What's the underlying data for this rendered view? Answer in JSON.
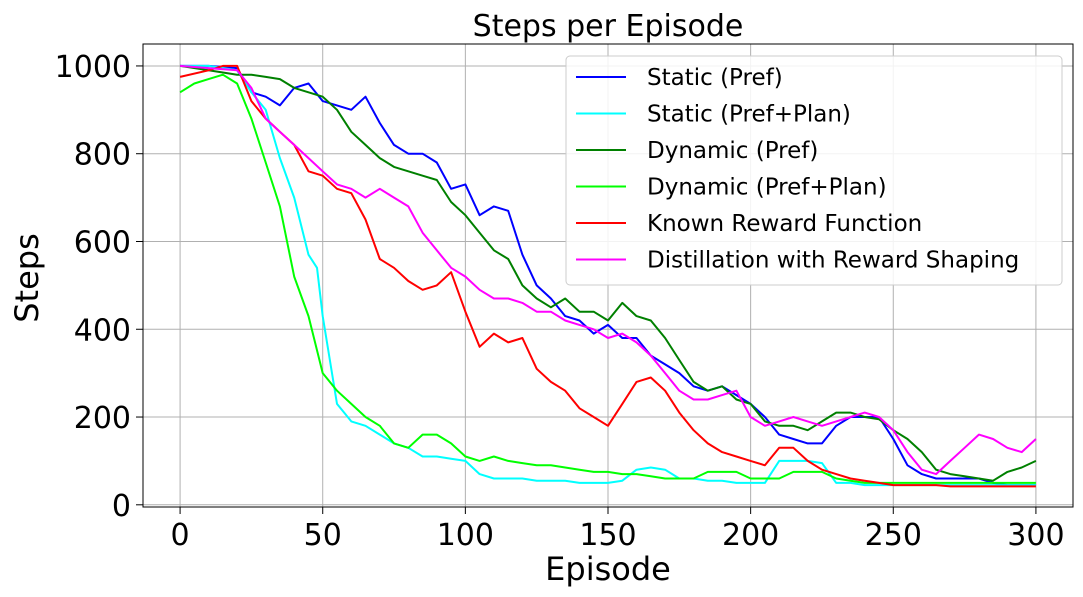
{
  "chart_data": {
    "type": "line",
    "title": "Steps per Episode",
    "xlabel": "Episode",
    "ylabel": "Steps",
    "xlim": [
      -13,
      313
    ],
    "ylim": [
      -5,
      1050
    ],
    "xticks": [
      0,
      50,
      100,
      150,
      200,
      250,
      300
    ],
    "yticks": [
      0,
      200,
      400,
      600,
      800,
      1000
    ],
    "grid": true,
    "legend_position": "top-right",
    "series": [
      {
        "name": "Static (Pref)",
        "color": "#0000ff",
        "x": [
          0,
          10,
          20,
          25,
          30,
          35,
          40,
          45,
          50,
          55,
          60,
          65,
          70,
          75,
          80,
          85,
          90,
          95,
          100,
          105,
          110,
          115,
          120,
          125,
          130,
          135,
          140,
          145,
          150,
          155,
          160,
          165,
          170,
          175,
          180,
          185,
          190,
          195,
          200,
          205,
          210,
          215,
          220,
          225,
          230,
          235,
          240,
          245,
          250,
          255,
          260,
          265,
          270,
          275,
          280,
          285,
          290,
          295,
          300
        ],
        "y": [
          1000,
          1000,
          995,
          940,
          930,
          910,
          950,
          960,
          920,
          910,
          900,
          930,
          870,
          820,
          800,
          800,
          780,
          720,
          730,
          660,
          680,
          670,
          570,
          500,
          470,
          430,
          420,
          390,
          410,
          380,
          380,
          340,
          320,
          300,
          270,
          260,
          270,
          250,
          230,
          200,
          160,
          150,
          140,
          140,
          180,
          200,
          200,
          200,
          150,
          90,
          70,
          60,
          60,
          60,
          60,
          50,
          45,
          45,
          45
        ]
      },
      {
        "name": "Static (Pref+Plan)",
        "color": "#00ffff",
        "x": [
          0,
          10,
          20,
          25,
          30,
          35,
          40,
          45,
          48,
          50,
          55,
          60,
          65,
          70,
          75,
          80,
          85,
          90,
          95,
          100,
          105,
          110,
          115,
          120,
          125,
          130,
          135,
          140,
          145,
          150,
          155,
          160,
          165,
          170,
          175,
          180,
          185,
          190,
          195,
          200,
          205,
          210,
          215,
          220,
          225,
          230,
          235,
          240,
          245,
          250,
          255,
          260,
          265,
          270,
          275,
          280,
          285,
          290,
          295,
          300
        ],
        "y": [
          1000,
          1000,
          990,
          940,
          900,
          790,
          700,
          570,
          540,
          430,
          230,
          190,
          180,
          160,
          140,
          130,
          110,
          110,
          105,
          100,
          70,
          60,
          60,
          60,
          55,
          55,
          55,
          50,
          50,
          50,
          55,
          80,
          85,
          80,
          60,
          60,
          55,
          55,
          50,
          50,
          50,
          100,
          100,
          100,
          95,
          50,
          50,
          45,
          45,
          45,
          45,
          45,
          45,
          45,
          45,
          45,
          45,
          45,
          45,
          45
        ]
      },
      {
        "name": "Dynamic (Pref)",
        "color": "#008000",
        "x": [
          0,
          10,
          20,
          25,
          30,
          35,
          40,
          45,
          50,
          55,
          60,
          65,
          70,
          75,
          80,
          85,
          90,
          95,
          100,
          105,
          110,
          115,
          120,
          125,
          130,
          135,
          140,
          145,
          150,
          155,
          160,
          165,
          170,
          175,
          180,
          185,
          190,
          195,
          200,
          205,
          210,
          215,
          220,
          225,
          230,
          235,
          240,
          245,
          250,
          255,
          260,
          265,
          270,
          275,
          280,
          285,
          290,
          295,
          300
        ],
        "y": [
          1000,
          990,
          980,
          980,
          975,
          970,
          950,
          940,
          930,
          900,
          850,
          820,
          790,
          770,
          760,
          750,
          740,
          690,
          660,
          620,
          580,
          560,
          500,
          470,
          450,
          470,
          440,
          440,
          420,
          460,
          430,
          420,
          380,
          330,
          280,
          260,
          270,
          240,
          230,
          190,
          180,
          180,
          170,
          190,
          210,
          210,
          200,
          195,
          170,
          150,
          120,
          80,
          70,
          65,
          60,
          55,
          75,
          85,
          100
        ]
      },
      {
        "name": "Dynamic (Pref+Plan)",
        "color": "#00ff00",
        "x": [
          0,
          5,
          10,
          15,
          20,
          25,
          30,
          35,
          40,
          45,
          50,
          55,
          60,
          65,
          70,
          75,
          80,
          85,
          90,
          95,
          100,
          105,
          110,
          115,
          120,
          125,
          130,
          135,
          140,
          145,
          150,
          155,
          160,
          165,
          170,
          175,
          180,
          185,
          190,
          195,
          200,
          205,
          210,
          215,
          220,
          225,
          230,
          235,
          240,
          245,
          250,
          255,
          260,
          265,
          270,
          275,
          280,
          285,
          290,
          295,
          300
        ],
        "y": [
          940,
          960,
          970,
          980,
          960,
          880,
          780,
          680,
          520,
          430,
          300,
          260,
          230,
          200,
          180,
          140,
          130,
          160,
          160,
          140,
          110,
          100,
          110,
          100,
          95,
          90,
          90,
          85,
          80,
          75,
          75,
          70,
          70,
          65,
          60,
          60,
          60,
          75,
          75,
          75,
          60,
          60,
          60,
          75,
          75,
          75,
          60,
          55,
          50,
          50,
          50,
          50,
          50,
          50,
          50,
          50,
          50,
          50,
          50,
          50,
          50
        ]
      },
      {
        "name": "Known Reward Function",
        "color": "#ff0000",
        "x": [
          0,
          10,
          15,
          20,
          25,
          30,
          35,
          40,
          45,
          50,
          55,
          60,
          65,
          70,
          75,
          80,
          85,
          90,
          95,
          100,
          105,
          110,
          115,
          120,
          125,
          130,
          135,
          140,
          145,
          150,
          155,
          160,
          165,
          170,
          175,
          180,
          185,
          190,
          195,
          200,
          205,
          210,
          215,
          220,
          225,
          230,
          235,
          240,
          245,
          250,
          255,
          260,
          265,
          270,
          275,
          280,
          285,
          290,
          295,
          300
        ],
        "y": [
          975,
          990,
          1000,
          1000,
          920,
          880,
          850,
          820,
          760,
          750,
          720,
          710,
          650,
          560,
          540,
          510,
          490,
          500,
          530,
          440,
          360,
          390,
          370,
          380,
          310,
          280,
          260,
          220,
          200,
          180,
          230,
          280,
          290,
          260,
          210,
          170,
          140,
          120,
          110,
          100,
          90,
          130,
          130,
          100,
          80,
          70,
          60,
          55,
          50,
          45,
          45,
          45,
          45,
          42,
          42,
          42,
          42,
          42,
          42,
          42
        ]
      },
      {
        "name": "Distillation with Reward Shaping",
        "color": "#ff00ff",
        "x": [
          0,
          10,
          20,
          25,
          30,
          35,
          40,
          45,
          50,
          55,
          60,
          65,
          70,
          75,
          80,
          85,
          90,
          95,
          100,
          105,
          110,
          115,
          120,
          125,
          130,
          135,
          140,
          145,
          150,
          155,
          160,
          165,
          170,
          175,
          180,
          185,
          190,
          195,
          200,
          205,
          210,
          215,
          220,
          225,
          230,
          235,
          240,
          245,
          250,
          255,
          260,
          265,
          270,
          275,
          280,
          285,
          290,
          295,
          300
        ],
        "y": [
          1000,
          995,
          990,
          950,
          880,
          850,
          820,
          790,
          760,
          730,
          720,
          700,
          720,
          700,
          680,
          620,
          580,
          540,
          520,
          490,
          470,
          470,
          460,
          440,
          440,
          420,
          410,
          400,
          380,
          390,
          370,
          340,
          300,
          260,
          240,
          240,
          250,
          260,
          200,
          180,
          190,
          200,
          190,
          180,
          190,
          200,
          210,
          200,
          170,
          120,
          80,
          70,
          100,
          130,
          160,
          150,
          130,
          120,
          150
        ]
      }
    ]
  }
}
